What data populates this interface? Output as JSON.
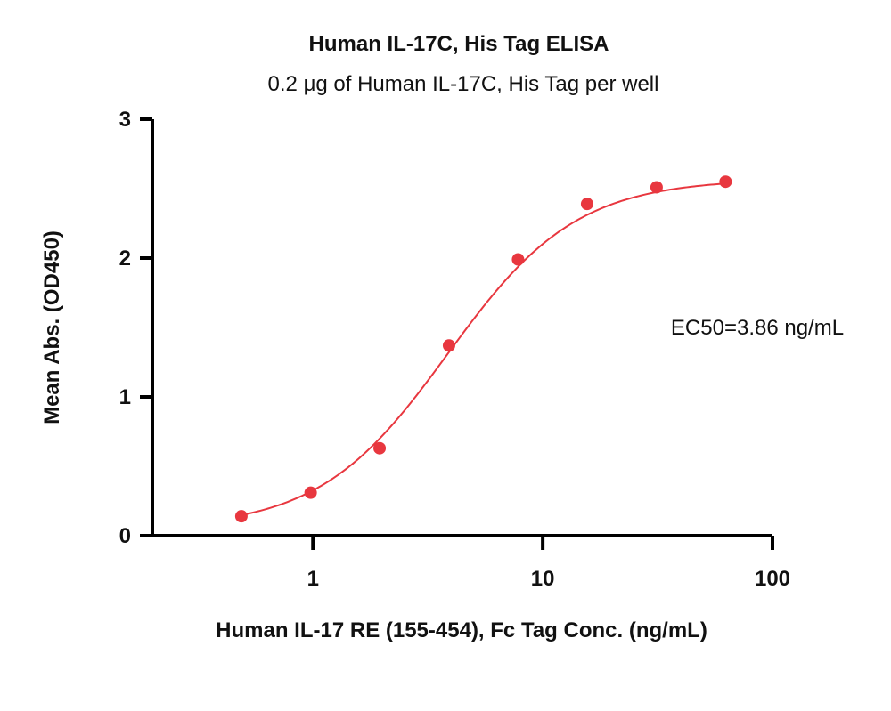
{
  "chart_data": {
    "type": "scatter",
    "title": "Human IL-17C, His Tag ELISA",
    "subtitle": "0.2 μg of Human IL-17C, His Tag per well",
    "xlabel": "Human IL-17 RE (155-454), Fc Tag Conc. (ng/mL)",
    "ylabel": "Mean Abs. (OD450)",
    "x_scale": "log",
    "xlim": [
      0.2,
      100
    ],
    "ylim": [
      0,
      3
    ],
    "x_ticks": [
      "1",
      "10",
      "100"
    ],
    "y_ticks": [
      "0",
      "1",
      "2",
      "3"
    ],
    "grid": false,
    "annotation": "EC50=3.86 ng/mL",
    "series": [
      {
        "x": [
          0.488,
          0.977,
          1.95,
          3.91,
          7.81,
          15.6,
          31.3,
          62.5
        ],
        "y": [
          0.14,
          0.31,
          0.63,
          1.37,
          1.99,
          2.39,
          2.51,
          2.55
        ],
        "color": "#e8373f"
      }
    ],
    "fit_curve": {
      "model": "4PL",
      "bottom": 0.05,
      "top": 2.57,
      "ec50": 3.86,
      "hill": 1.55,
      "color": "#e8373f"
    }
  }
}
